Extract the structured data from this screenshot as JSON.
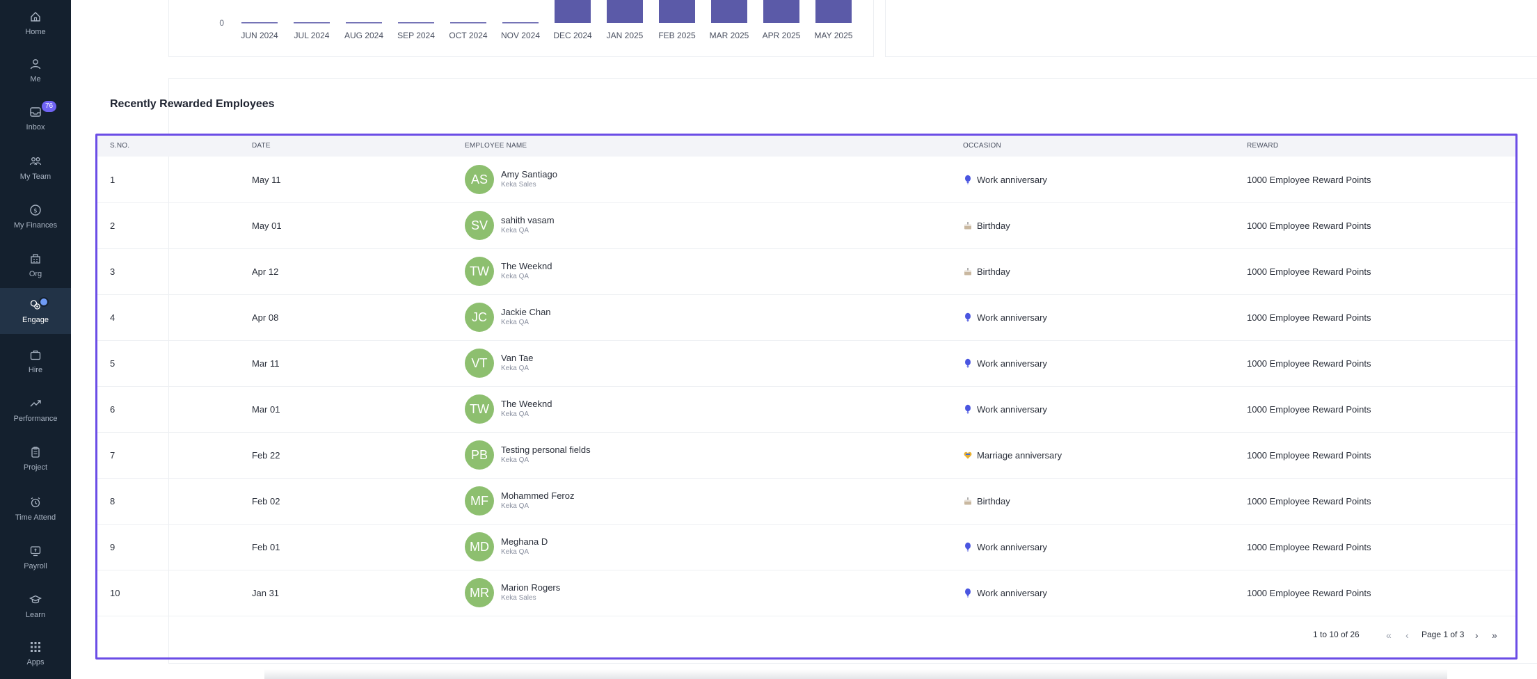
{
  "sidebar": {
    "items": [
      {
        "label": "Home",
        "icon": "home-icon"
      },
      {
        "label": "Me",
        "icon": "user-icon"
      },
      {
        "label": "Inbox",
        "icon": "inbox-icon",
        "badge": "76"
      },
      {
        "label": "My Team",
        "icon": "team-icon"
      },
      {
        "label": "My Finances",
        "icon": "dollar-icon"
      },
      {
        "label": "Org",
        "icon": "org-icon"
      },
      {
        "label": "Engage",
        "icon": "engage-icon",
        "active": true
      },
      {
        "label": "Hire",
        "icon": "briefcase-icon"
      },
      {
        "label": "Performance",
        "icon": "trend-icon"
      },
      {
        "label": "Project",
        "icon": "clipboard-icon"
      },
      {
        "label": "Time Attend",
        "icon": "alarm-icon"
      },
      {
        "label": "Payroll",
        "icon": "payroll-icon"
      },
      {
        "label": "Learn",
        "icon": "graduation-icon"
      },
      {
        "label": "Apps",
        "icon": "grid-icon"
      }
    ]
  },
  "chart_data": {
    "type": "bar",
    "categories": [
      "JUN 2024",
      "JUL 2024",
      "AUG 2024",
      "SEP 2024",
      "OCT 2024",
      "NOV 2024",
      "DEC 2024",
      "JAN 2025",
      "FEB 2025",
      "MAR 2025",
      "APR 2025",
      "MAY 2025"
    ],
    "values": [
      0,
      0,
      0,
      0,
      0,
      0,
      null,
      null,
      null,
      null,
      null,
      null
    ],
    "visible_tick": "0",
    "bar_color": "#5b5aa8",
    "note_visible": "bars for DEC 2024 – MAY 2025 are cropped at top"
  },
  "section": {
    "title": "Recently Rewarded Employees"
  },
  "table": {
    "headers": {
      "sno": "S.NO.",
      "date": "DATE",
      "name": "EMPLOYEE NAME",
      "occasion": "OCCASION",
      "reward": "REWARD"
    },
    "rows": [
      {
        "sno": "1",
        "date": "May 11",
        "initials": "AS",
        "name": "Amy Santiago",
        "dept": "Keka Sales",
        "occasion": "Work anniversary",
        "occ_icon": "balloon-icon",
        "reward": "1000 Employee Reward Points"
      },
      {
        "sno": "2",
        "date": "May 01",
        "initials": "SV",
        "name": "sahith vasam",
        "dept": "Keka QA",
        "occasion": "Birthday",
        "occ_icon": "cake-icon",
        "reward": "1000 Employee Reward Points"
      },
      {
        "sno": "3",
        "date": "Apr 12",
        "initials": "TW",
        "name": "The Weeknd",
        "dept": "Keka QA",
        "occasion": "Birthday",
        "occ_icon": "cake-icon",
        "reward": "1000 Employee Reward Points"
      },
      {
        "sno": "4",
        "date": "Apr 08",
        "initials": "JC",
        "name": "Jackie Chan",
        "dept": "Keka QA",
        "occasion": "Work anniversary",
        "occ_icon": "balloon-icon",
        "reward": "1000 Employee Reward Points"
      },
      {
        "sno": "5",
        "date": "Mar 11",
        "initials": "VT",
        "name": "Van Tae",
        "dept": "Keka QA",
        "occasion": "Work anniversary",
        "occ_icon": "balloon-icon",
        "reward": "1000 Employee Reward Points"
      },
      {
        "sno": "6",
        "date": "Mar 01",
        "initials": "TW",
        "name": "The Weeknd",
        "dept": "Keka QA",
        "occasion": "Work anniversary",
        "occ_icon": "balloon-icon",
        "reward": "1000 Employee Reward Points"
      },
      {
        "sno": "7",
        "date": "Feb 22",
        "initials": "PB",
        "name": "Testing personal fields",
        "dept": "Keka QA",
        "occasion": "Marriage anniversary",
        "occ_icon": "heart-icon",
        "reward": "1000 Employee Reward Points"
      },
      {
        "sno": "8",
        "date": "Feb 02",
        "initials": "MF",
        "name": "Mohammed Feroz",
        "dept": "Keka QA",
        "occasion": "Birthday",
        "occ_icon": "cake-icon",
        "reward": "1000 Employee Reward Points"
      },
      {
        "sno": "9",
        "date": "Feb 01",
        "initials": "MD",
        "name": "Meghana D",
        "dept": "Keka QA",
        "occasion": "Work anniversary",
        "occ_icon": "balloon-icon",
        "reward": "1000 Employee Reward Points"
      },
      {
        "sno": "10",
        "date": "Jan 31",
        "initials": "MR",
        "name": "Marion Rogers",
        "dept": "Keka Sales",
        "occasion": "Work anniversary",
        "occ_icon": "balloon-icon",
        "reward": "1000 Employee Reward Points"
      }
    ]
  },
  "pagination": {
    "summary": "1 to 10 of 26",
    "page_label": "Page 1 of 3"
  },
  "colors": {
    "sidebar_bg": "#14202e",
    "accent": "#6b4de6",
    "avatar": "#8dbf6f",
    "bar": "#5b5aa8"
  }
}
